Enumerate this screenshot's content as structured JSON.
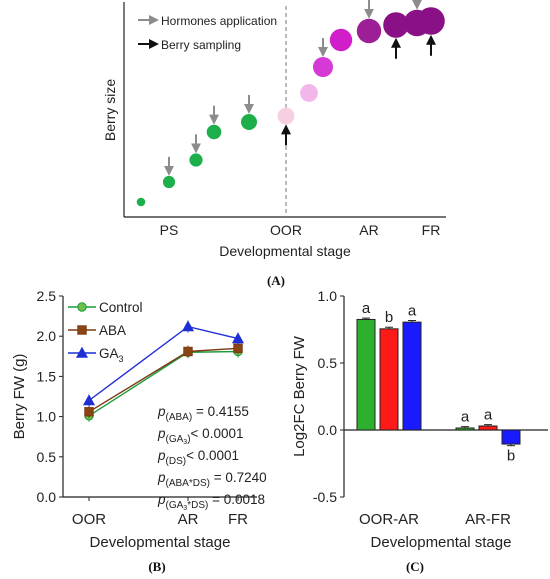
{
  "panel_a": {
    "letter": "(A)",
    "legend": {
      "hormones": "Hormones application",
      "sampling": "Berry sampling"
    },
    "arrow_colors": {
      "hormones": "#8c8c8c",
      "sampling": "#111111"
    },
    "xlabel": "Developmental stage",
    "ylabel": "Berry size",
    "ticks": [
      "PS",
      "OOR",
      "AR",
      "FR"
    ]
  },
  "panel_b": {
    "letter": "(B)",
    "stats": [
      {
        "lead": "p",
        "sub": "(ABA)",
        "tail": " = 0.4155"
      },
      {
        "lead": "p",
        "sub": "(GA",
        "sub2": "3",
        "sub3": ")",
        "tail": "< 0.0001"
      },
      {
        "lead": "p",
        "sub": "(DS)",
        "tail": "< 0.0001"
      },
      {
        "lead": "p",
        "sub": "(ABA*DS)",
        "tail": " = 0.7240"
      },
      {
        "lead": "p",
        "sub": "(GA",
        "sub2": "3",
        "sub3": "*DS)",
        "tail": " = 0.0018"
      }
    ]
  },
  "panel_c": {
    "letter": "(C)"
  },
  "chart_data": [
    {
      "type": "scatter",
      "panel": "A",
      "xlabel": "Developmental stage",
      "ylabel": "Berry size",
      "x_ticks": [
        "PS",
        "OOR",
        "AR",
        "FR"
      ],
      "points": [
        {
          "size": 1,
          "color": "#1db04a",
          "hormone_arrow": false,
          "sampling_arrow": false
        },
        {
          "size": 2,
          "color": "#1db04a",
          "hormone_arrow": true,
          "sampling_arrow": false
        },
        {
          "size": 2.3,
          "color": "#1db04a",
          "hormone_arrow": true,
          "sampling_arrow": false
        },
        {
          "size": 2.7,
          "color": "#1db04a",
          "hormone_arrow": true,
          "sampling_arrow": false
        },
        {
          "size": 3.1,
          "color": "#1db04a",
          "hormone_arrow": true,
          "sampling_arrow": false
        },
        {
          "size": 3.3,
          "color": "#f6cfe3",
          "hormone_arrow": false,
          "sampling_arrow": true
        },
        {
          "size": 3.6,
          "color": "#f2b6ea",
          "hormone_arrow": false,
          "sampling_arrow": false
        },
        {
          "size": 4.2,
          "color": "#d63ad6",
          "hormone_arrow": true,
          "sampling_arrow": false
        },
        {
          "size": 4.9,
          "color": "#d01fc9",
          "hormone_arrow": false,
          "sampling_arrow": false
        },
        {
          "size": 5.5,
          "color": "#9c1f98",
          "hormone_arrow": true,
          "sampling_arrow": false
        },
        {
          "size": 5.8,
          "color": "#8a1185",
          "hormone_arrow": false,
          "sampling_arrow": true
        },
        {
          "size": 6.1,
          "color": "#8a1185",
          "hormone_arrow": true,
          "sampling_arrow": false
        },
        {
          "size": 6.4,
          "color": "#8a1185",
          "hormone_arrow": false,
          "sampling_arrow": true
        }
      ]
    },
    {
      "type": "line",
      "panel": "B",
      "xlabel": "Developmental stage",
      "ylabel": "Berry FW (g)",
      "categories": [
        "OOR",
        "AR",
        "FR"
      ],
      "ylim": [
        0.0,
        2.5
      ],
      "yticks": [
        "0.0",
        "0.5",
        "1.0",
        "1.5",
        "2.0",
        "2.5"
      ],
      "series": [
        {
          "name": "Control",
          "marker": "circle",
          "color": "#1a9b3a",
          "fill": "#6cc04a",
          "values": [
            1.01,
            1.8,
            1.81
          ]
        },
        {
          "name": "ABA",
          "marker": "square",
          "color": "#7a3a12",
          "fill": "#8b4513",
          "values": [
            1.06,
            1.81,
            1.85
          ]
        },
        {
          "name": "GA",
          "name_sub": "3",
          "marker": "triangle",
          "color": "#1f2fd6",
          "fill": "#1f2fd6",
          "values": [
            1.2,
            2.12,
            1.97
          ]
        }
      ]
    },
    {
      "type": "bar",
      "panel": "C",
      "xlabel": "Developmental stage",
      "ylabel": "Log2FC Berry FW",
      "categories": [
        "OOR-AR",
        "AR-FR"
      ],
      "ylim": [
        -0.5,
        1.0
      ],
      "yticks": [
        "-0.5",
        "0.0",
        "0.5",
        "1.0"
      ],
      "series": [
        {
          "color": "#2db02d",
          "values": [
            0.825,
            0.015
          ],
          "errors": [
            0.01,
            0.01
          ],
          "letters": [
            "a",
            "a"
          ]
        },
        {
          "color": "#ff1a1a",
          "values": [
            0.755,
            0.03
          ],
          "errors": [
            0.012,
            0.01
          ],
          "letters": [
            "b",
            "a"
          ]
        },
        {
          "color": "#1a1aff",
          "values": [
            0.805,
            -0.105
          ],
          "errors": [
            0.012,
            0.012
          ],
          "letters": [
            "a",
            "b"
          ]
        }
      ]
    }
  ]
}
